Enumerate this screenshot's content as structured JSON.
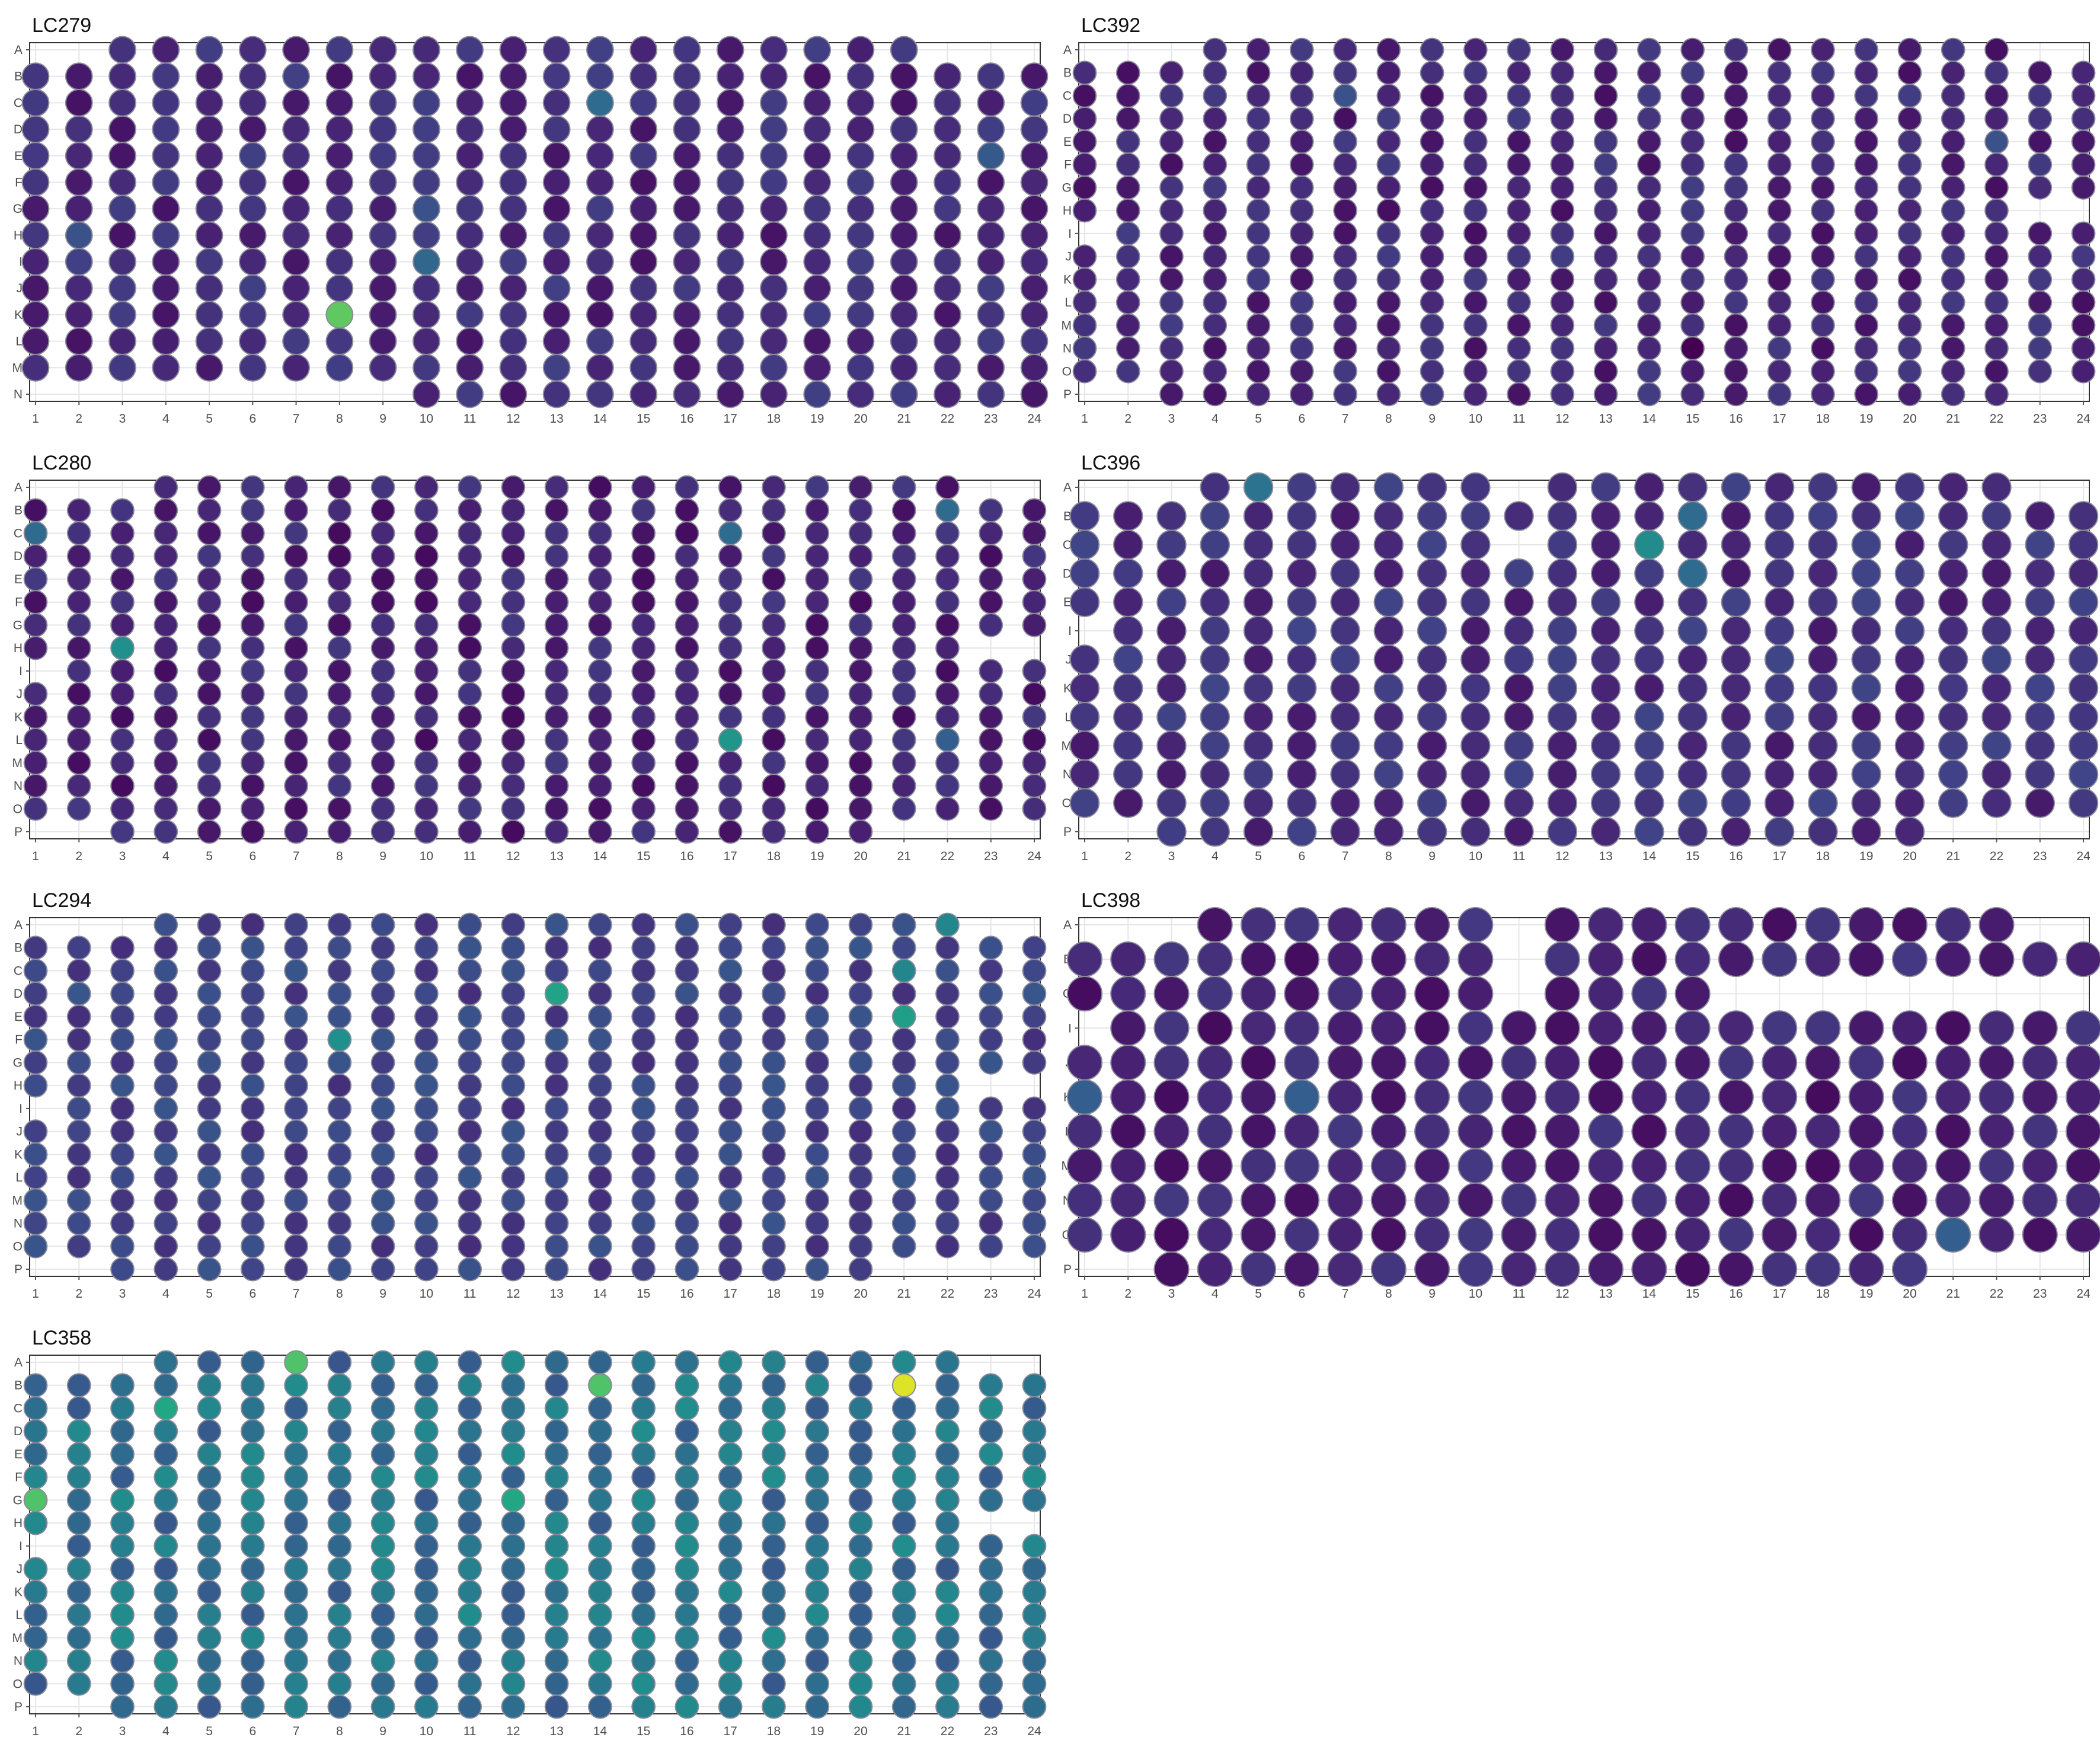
{
  "chart_data": [
    {
      "type": "scatter",
      "title": "LC279",
      "x": [
        1,
        2,
        3,
        4,
        5,
        6,
        7,
        8,
        9,
        10,
        11,
        12,
        13,
        14,
        15,
        16,
        17,
        18,
        19,
        20,
        21,
        22,
        23,
        24
      ],
      "rows": [
        "A",
        "B",
        "C",
        "D",
        "E",
        "F",
        "G",
        "H",
        "I",
        "J",
        "K",
        "L",
        "M",
        "N"
      ],
      "grid": true,
      "color_scale": "viridis",
      "wells": [
        {
          "row": "A",
          "cols": [
            3,
            21
          ]
        },
        {
          "row": "B",
          "cols": [
            1,
            24
          ]
        },
        {
          "row": "C",
          "cols": [
            1,
            24
          ]
        },
        {
          "row": "D",
          "cols": [
            1,
            24
          ]
        },
        {
          "row": "E",
          "cols": [
            1,
            24
          ]
        },
        {
          "row": "F",
          "cols": [
            1,
            24
          ]
        },
        {
          "row": "G",
          "cols": [
            1,
            24
          ]
        },
        {
          "row": "H",
          "cols": [
            1,
            24
          ]
        },
        {
          "row": "I",
          "cols": [
            1,
            24
          ]
        },
        {
          "row": "J",
          "cols": [
            1,
            24
          ]
        },
        {
          "row": "K",
          "cols": [
            1,
            24
          ]
        },
        {
          "row": "L",
          "cols": [
            1,
            24
          ]
        },
        {
          "row": "M",
          "cols": [
            1,
            24
          ]
        },
        {
          "row": "N",
          "cols": [
            10,
            24
          ]
        }
      ],
      "values_note_level": 0.12,
      "highlights": [
        {
          "row": "K",
          "col": 8,
          "level": 0.75
        },
        {
          "row": "C",
          "col": 14,
          "level": 0.35
        },
        {
          "row": "I",
          "col": 10,
          "level": 0.33
        },
        {
          "row": "G",
          "col": 10,
          "level": 0.25
        },
        {
          "row": "H",
          "col": 2,
          "level": 0.25
        },
        {
          "row": "E",
          "col": 23,
          "level": 0.28
        }
      ]
    },
    {
      "type": "scatter",
      "title": "LC392",
      "x": [
        1,
        2,
        3,
        4,
        5,
        6,
        7,
        8,
        9,
        10,
        11,
        12,
        13,
        14,
        15,
        16,
        17,
        18,
        19,
        20,
        21,
        22,
        23,
        24
      ],
      "rows": [
        "A",
        "B",
        "C",
        "D",
        "E",
        "F",
        "G",
        "H",
        "I",
        "J",
        "K",
        "L",
        "M",
        "N",
        "O",
        "P"
      ],
      "grid": true,
      "color_scale": "viridis",
      "wells": [
        {
          "row": "A",
          "cols": [
            4,
            22
          ]
        },
        {
          "row": "B",
          "cols": [
            1,
            24
          ]
        },
        {
          "row": "C",
          "cols": [
            1,
            24
          ]
        },
        {
          "row": "D",
          "cols": [
            1,
            24
          ]
        },
        {
          "row": "E",
          "cols": [
            1,
            24
          ]
        },
        {
          "row": "F",
          "cols": [
            1,
            24
          ]
        },
        {
          "row": "G",
          "cols": [
            1,
            24
          ]
        },
        {
          "row": "H",
          "cols": [
            1,
            22
          ]
        },
        {
          "row": "I",
          "cols": [
            2,
            24
          ]
        },
        {
          "row": "J",
          "cols": [
            1,
            24
          ]
        },
        {
          "row": "K",
          "cols": [
            1,
            24
          ]
        },
        {
          "row": "L",
          "cols": [
            1,
            24
          ]
        },
        {
          "row": "M",
          "cols": [
            1,
            24
          ]
        },
        {
          "row": "N",
          "cols": [
            1,
            24
          ]
        },
        {
          "row": "O",
          "cols": [
            1,
            24
          ]
        },
        {
          "row": "P",
          "cols": [
            3,
            22
          ]
        }
      ],
      "values_note_level": 0.11,
      "highlights": [
        {
          "row": "N",
          "col": 15,
          "level": 0.0
        },
        {
          "row": "C",
          "col": 7,
          "level": 0.25
        },
        {
          "row": "E",
          "col": 22,
          "level": 0.25
        }
      ]
    },
    {
      "type": "scatter",
      "title": "LC280",
      "x": [
        1,
        2,
        3,
        4,
        5,
        6,
        7,
        8,
        9,
        10,
        11,
        12,
        13,
        14,
        15,
        16,
        17,
        18,
        19,
        20,
        21,
        22,
        23,
        24
      ],
      "rows": [
        "A",
        "B",
        "C",
        "D",
        "E",
        "F",
        "G",
        "H",
        "I",
        "J",
        "K",
        "L",
        "M",
        "N",
        "O",
        "P"
      ],
      "grid": true,
      "color_scale": "viridis",
      "wells": [
        {
          "row": "A",
          "cols": [
            4,
            22
          ]
        },
        {
          "row": "B",
          "cols": [
            1,
            24
          ]
        },
        {
          "row": "C",
          "cols": [
            1,
            24
          ]
        },
        {
          "row": "D",
          "cols": [
            1,
            24
          ]
        },
        {
          "row": "E",
          "cols": [
            1,
            24
          ]
        },
        {
          "row": "F",
          "cols": [
            1,
            24
          ]
        },
        {
          "row": "G",
          "cols": [
            1,
            24
          ]
        },
        {
          "row": "H",
          "cols": [
            1,
            22
          ]
        },
        {
          "row": "I",
          "cols": [
            2,
            24
          ]
        },
        {
          "row": "J",
          "cols": [
            1,
            24
          ]
        },
        {
          "row": "K",
          "cols": [
            1,
            24
          ]
        },
        {
          "row": "L",
          "cols": [
            1,
            24
          ]
        },
        {
          "row": "M",
          "cols": [
            1,
            24
          ]
        },
        {
          "row": "N",
          "cols": [
            1,
            24
          ]
        },
        {
          "row": "O",
          "cols": [
            1,
            24
          ]
        },
        {
          "row": "P",
          "cols": [
            3,
            20
          ]
        }
      ],
      "values_note_level": 0.1,
      "highlights": [
        {
          "row": "H",
          "col": 3,
          "level": 0.5
        },
        {
          "row": "L",
          "col": 17,
          "level": 0.52
        },
        {
          "row": "C",
          "col": 1,
          "level": 0.35
        },
        {
          "row": "B",
          "col": 22,
          "level": 0.35
        },
        {
          "row": "C",
          "col": 17,
          "level": 0.35
        },
        {
          "row": "L",
          "col": 22,
          "level": 0.3
        }
      ]
    },
    {
      "type": "scatter",
      "title": "LC396",
      "x": [
        1,
        2,
        3,
        4,
        5,
        6,
        7,
        8,
        9,
        10,
        11,
        12,
        13,
        14,
        15,
        16,
        17,
        18,
        19,
        20,
        21,
        22,
        23,
        24
      ],
      "rows": [
        "A",
        "B",
        "C",
        "D",
        "E",
        "I",
        "J",
        "K",
        "L",
        "M",
        "N",
        "O",
        "P"
      ],
      "grid": true,
      "color_scale": "viridis",
      "wells": [
        {
          "row": "A",
          "cols": [
            4,
            10
          ]
        },
        {
          "row": "A",
          "cols": [
            12,
            22
          ]
        },
        {
          "row": "B",
          "cols": [
            1,
            24
          ]
        },
        {
          "row": "C",
          "cols": [
            1,
            10
          ]
        },
        {
          "row": "C",
          "cols": [
            12,
            24
          ]
        },
        {
          "row": "D",
          "cols": [
            1,
            24
          ]
        },
        {
          "row": "E",
          "cols": [
            1,
            24
          ]
        },
        {
          "row": "I",
          "cols": [
            2,
            24
          ]
        },
        {
          "row": "J",
          "cols": [
            1,
            24
          ]
        },
        {
          "row": "K",
          "cols": [
            1,
            24
          ]
        },
        {
          "row": "L",
          "cols": [
            1,
            24
          ]
        },
        {
          "row": "M",
          "cols": [
            1,
            24
          ]
        },
        {
          "row": "N",
          "cols": [
            1,
            24
          ]
        },
        {
          "row": "O",
          "cols": [
            1,
            24
          ]
        },
        {
          "row": "P",
          "cols": [
            3,
            20
          ]
        }
      ],
      "values_note_level": 0.14,
      "highlights": [
        {
          "row": "C",
          "col": 14,
          "level": 0.48
        },
        {
          "row": "A",
          "col": 5,
          "level": 0.38
        },
        {
          "row": "B",
          "col": 15,
          "level": 0.35
        },
        {
          "row": "D",
          "col": 15,
          "level": 0.35
        }
      ]
    },
    {
      "type": "scatter",
      "title": "LC294",
      "x": [
        1,
        2,
        3,
        4,
        5,
        6,
        7,
        8,
        9,
        10,
        11,
        12,
        13,
        14,
        15,
        16,
        17,
        18,
        19,
        20,
        21,
        22,
        23,
        24
      ],
      "rows": [
        "A",
        "B",
        "C",
        "D",
        "E",
        "F",
        "G",
        "H",
        "I",
        "J",
        "K",
        "L",
        "M",
        "N",
        "O",
        "P"
      ],
      "grid": true,
      "color_scale": "viridis",
      "wells": [
        {
          "row": "A",
          "cols": [
            4,
            22
          ]
        },
        {
          "row": "B",
          "cols": [
            1,
            24
          ]
        },
        {
          "row": "C",
          "cols": [
            1,
            24
          ]
        },
        {
          "row": "D",
          "cols": [
            1,
            24
          ]
        },
        {
          "row": "E",
          "cols": [
            1,
            24
          ]
        },
        {
          "row": "F",
          "cols": [
            1,
            24
          ]
        },
        {
          "row": "G",
          "cols": [
            1,
            24
          ]
        },
        {
          "row": "H",
          "cols": [
            1,
            22
          ]
        },
        {
          "row": "I",
          "cols": [
            2,
            24
          ]
        },
        {
          "row": "J",
          "cols": [
            1,
            24
          ]
        },
        {
          "row": "K",
          "cols": [
            1,
            24
          ]
        },
        {
          "row": "L",
          "cols": [
            1,
            24
          ]
        },
        {
          "row": "M",
          "cols": [
            1,
            24
          ]
        },
        {
          "row": "N",
          "cols": [
            1,
            24
          ]
        },
        {
          "row": "O",
          "cols": [
            1,
            24
          ]
        },
        {
          "row": "P",
          "cols": [
            3,
            20
          ]
        }
      ],
      "values_note_level": 0.2,
      "highlights": [
        {
          "row": "D",
          "col": 13,
          "level": 0.58
        },
        {
          "row": "E",
          "col": 21,
          "level": 0.56
        },
        {
          "row": "F",
          "col": 8,
          "level": 0.5
        },
        {
          "row": "C",
          "col": 21,
          "level": 0.46
        },
        {
          "row": "A",
          "col": 22,
          "level": 0.46
        }
      ]
    },
    {
      "type": "scatter",
      "title": "LC398",
      "x": [
        1,
        2,
        3,
        4,
        5,
        6,
        7,
        8,
        9,
        10,
        11,
        12,
        13,
        14,
        15,
        16,
        17,
        18,
        19,
        20,
        21,
        22,
        23,
        24
      ],
      "rows": [
        "A",
        "B",
        "C",
        "I",
        "J",
        "K",
        "L",
        "M",
        "N",
        "O",
        "P"
      ],
      "grid": true,
      "color_scale": "viridis",
      "wells": [
        {
          "row": "A",
          "cols": [
            4,
            10
          ]
        },
        {
          "row": "A",
          "cols": [
            12,
            22
          ]
        },
        {
          "row": "B",
          "cols": [
            1,
            10
          ]
        },
        {
          "row": "B",
          "cols": [
            12,
            24
          ]
        },
        {
          "row": "C",
          "cols": [
            1,
            10
          ]
        },
        {
          "row": "C",
          "cols": [
            12,
            15
          ]
        },
        {
          "row": "I",
          "cols": [
            2,
            24
          ]
        },
        {
          "row": "J",
          "cols": [
            1,
            24
          ]
        },
        {
          "row": "K",
          "cols": [
            1,
            24
          ]
        },
        {
          "row": "L",
          "cols": [
            1,
            24
          ]
        },
        {
          "row": "M",
          "cols": [
            1,
            24
          ]
        },
        {
          "row": "N",
          "cols": [
            1,
            24
          ]
        },
        {
          "row": "O",
          "cols": [
            1,
            24
          ]
        },
        {
          "row": "P",
          "cols": [
            3,
            20
          ]
        }
      ],
      "values_note_level": 0.1,
      "highlights": [
        {
          "row": "K",
          "col": 1,
          "level": 0.3
        },
        {
          "row": "K",
          "col": 6,
          "level": 0.3
        },
        {
          "row": "O",
          "col": 21,
          "level": 0.3
        }
      ]
    },
    {
      "type": "scatter",
      "title": "LC358",
      "x": [
        1,
        2,
        3,
        4,
        5,
        6,
        7,
        8,
        9,
        10,
        11,
        12,
        13,
        14,
        15,
        16,
        17,
        18,
        19,
        20,
        21,
        22,
        23,
        24
      ],
      "rows": [
        "A",
        "B",
        "C",
        "D",
        "E",
        "F",
        "G",
        "H",
        "I",
        "J",
        "K",
        "L",
        "M",
        "N",
        "O",
        "P"
      ],
      "grid": true,
      "color_scale": "viridis",
      "wells": [
        {
          "row": "A",
          "cols": [
            4,
            22
          ]
        },
        {
          "row": "B",
          "cols": [
            1,
            24
          ]
        },
        {
          "row": "C",
          "cols": [
            1,
            24
          ]
        },
        {
          "row": "D",
          "cols": [
            1,
            24
          ]
        },
        {
          "row": "E",
          "cols": [
            1,
            24
          ]
        },
        {
          "row": "F",
          "cols": [
            1,
            24
          ]
        },
        {
          "row": "G",
          "cols": [
            1,
            24
          ]
        },
        {
          "row": "H",
          "cols": [
            1,
            22
          ]
        },
        {
          "row": "I",
          "cols": [
            2,
            24
          ]
        },
        {
          "row": "J",
          "cols": [
            1,
            24
          ]
        },
        {
          "row": "K",
          "cols": [
            1,
            24
          ]
        },
        {
          "row": "L",
          "cols": [
            1,
            24
          ]
        },
        {
          "row": "M",
          "cols": [
            1,
            24
          ]
        },
        {
          "row": "N",
          "cols": [
            1,
            24
          ]
        },
        {
          "row": "O",
          "cols": [
            1,
            24
          ]
        },
        {
          "row": "P",
          "cols": [
            3,
            24
          ]
        }
      ],
      "values_note_level": 0.38,
      "highlights": [
        {
          "row": "B",
          "col": 21,
          "level": 0.95
        },
        {
          "row": "A",
          "col": 7,
          "level": 0.72
        },
        {
          "row": "B",
          "col": 14,
          "level": 0.72
        },
        {
          "row": "G",
          "col": 1,
          "level": 0.72
        },
        {
          "row": "C",
          "col": 4,
          "level": 0.6
        },
        {
          "row": "G",
          "col": 12,
          "level": 0.6
        }
      ]
    }
  ]
}
